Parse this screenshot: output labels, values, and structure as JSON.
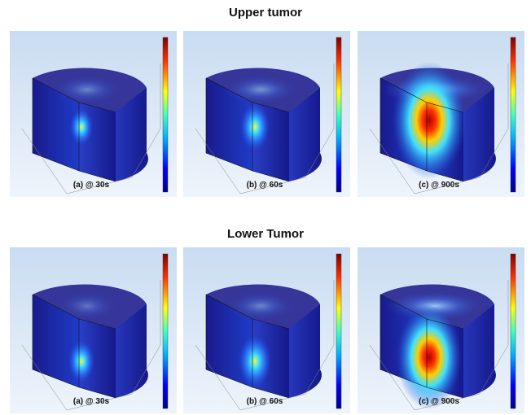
{
  "sections": [
    {
      "title": "Upper tumor",
      "panels": [
        {
          "caption": "(a) @ 30s"
        },
        {
          "caption": "(b) @ 60s"
        },
        {
          "caption": "(c) @ 900s"
        }
      ]
    },
    {
      "title": "Lower Tumor",
      "panels": [
        {
          "caption": "(a) @ 30s"
        },
        {
          "caption": "(b) @ 60s"
        },
        {
          "caption": "(c) @ 900s"
        }
      ]
    }
  ]
}
